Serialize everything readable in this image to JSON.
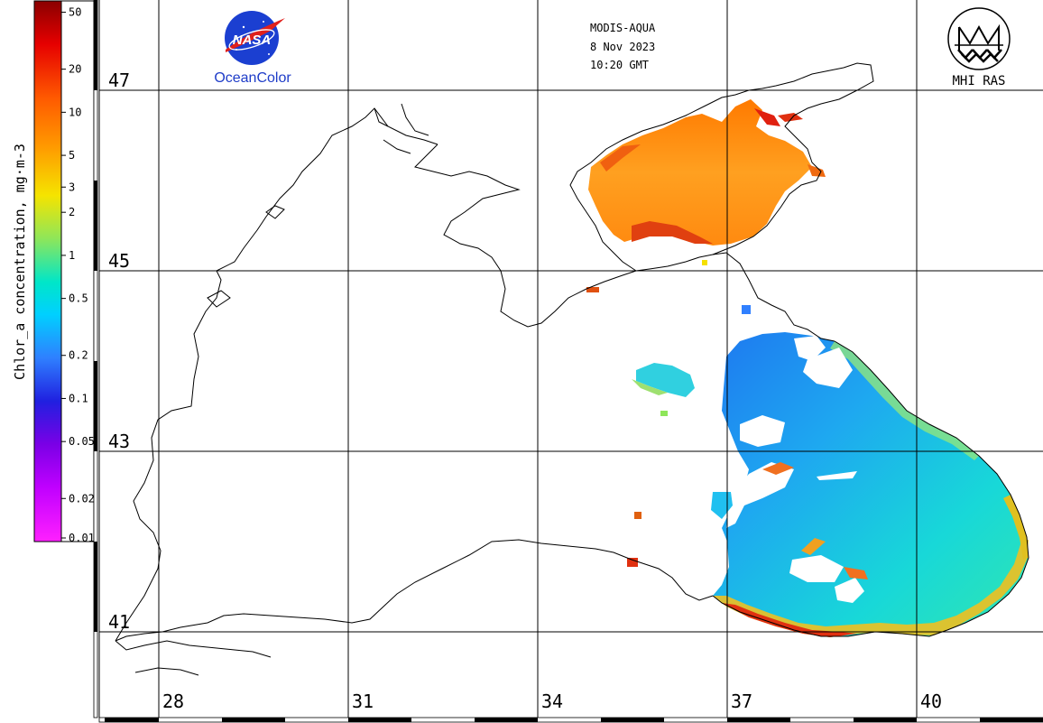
{
  "header": {
    "sensor": "MODIS-AQUA",
    "date": "8 Nov 2023",
    "time": "10:20 GMT"
  },
  "logos": {
    "nasa_text": "NASA",
    "oceancolor_text": "OceanColor",
    "mhi_text": "MHI RAS"
  },
  "colorbar": {
    "title": "Chlor_a concentration, mg·m-3",
    "ticks": [
      "50",
      "20",
      "10",
      "5",
      "3",
      "2",
      "1",
      "0.5",
      "0.2",
      "0.1",
      "0.05",
      "0.02",
      "0.01"
    ]
  },
  "grid": {
    "lat_labels": [
      "47",
      "45",
      "43",
      "41"
    ],
    "lon_labels": [
      "28",
      "31",
      "34",
      "37",
      "40"
    ]
  },
  "colors": {
    "coast": "#000000",
    "grid": "#000000",
    "background": "#ffffff",
    "oceancolor_text": "#1e3cc8",
    "nasa_blue": "#1b3fd1",
    "nasa_red": "#e0201b"
  }
}
